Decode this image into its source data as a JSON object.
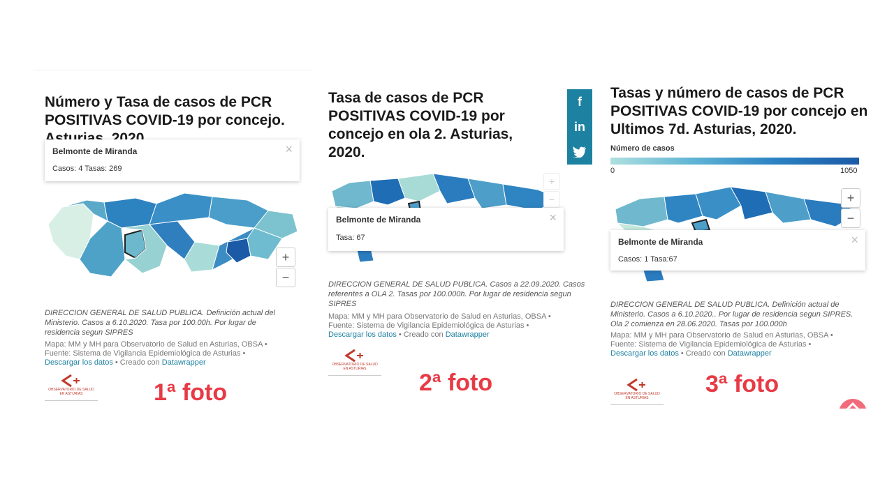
{
  "panels": [
    {
      "title_lines": [
        "Número y Tasa de casos de PCR",
        "POSITIVAS COVID-19 por concejo.",
        "Asturias, 2020"
      ],
      "tooltip": {
        "name": "Belmonte de Miranda",
        "values": "Casos: 4 Tasas: 269"
      },
      "zoom": {
        "plus": "+",
        "minus": "−"
      },
      "note": "DIRECCION GENERAL DE SALUD PUBLICA. Definición actual del Ministerio. Casos a 6.10.2020. Tasa por 100.00h. Por lugar de residencia segun SIPRES",
      "credits": {
        "map": "Mapa: MM y MH para Observatorio de Salud en Asturias, OBSA •",
        "source": "Fuente: Sistema de Vigilancia Epidemiológica de Asturias •",
        "download": "Descargar los datos",
        "created": " • Creado con ",
        "tool": "Datawrapper"
      },
      "logo_text": [
        "OBSERVATORIO DE SALUD",
        "EN ASTURIAS"
      ],
      "foto_label": "1ª foto"
    },
    {
      "title_lines": [
        "Tasa de casos de PCR",
        "POSITIVAS COVID-19 por",
        "concejo en ola 2.  Asturias,",
        "2020."
      ],
      "tooltip": {
        "name": "Belmonte de Miranda",
        "values": "Tasa: 67"
      },
      "zoom": {
        "plus": "+",
        "minus": "−"
      },
      "note": "DIRECCION GENERAL DE SALUD PUBLICA. Casos a 22.09.2020. Casos referentes a OLA 2. Tasas por 100.000h. Por lugar de residencia segun SIPRES",
      "credits": {
        "map": "Mapa: MM y MH para Observatorio de Salud en Asturias, OBSA •",
        "source": "Fuente: Sistema de Vigilancia Epidemiológica de Asturias •",
        "download": "Descargar los datos",
        "created": " • Creado con ",
        "tool": "Datawrapper"
      },
      "logo_text": [
        "OBSERVATORIO DE SALUD",
        "EN ASTURIAS"
      ],
      "foto_label": "2ª foto",
      "social": {
        "facebook": "f",
        "linkedin": "in",
        "twitter": "🐦"
      }
    },
    {
      "title_lines": [
        "Tasas y número de casos de PCR",
        "POSITIVAS COVID-19 por concejo en",
        "Ultimos 7d. Asturias, 2020."
      ],
      "legend": {
        "title": "Número de casos",
        "min": "0",
        "max": "1050"
      },
      "tooltip": {
        "name": "Belmonte de Miranda",
        "values": "Casos: 1 Tasa:67"
      },
      "zoom": {
        "plus": "+",
        "minus": "−"
      },
      "note": "DIRECCION GENERAL DE SALUD PUBLICA. Definición actual de Ministerio. Casos a 6.10.2020.. Por lugar de residencia segun SIPRES. Ola 2 comienza en 28.06.2020. Tasas por 100.000h",
      "credits": {
        "map": "Mapa: MM y MH para Observatorio de Salud en Asturias, OBSA •",
        "source": "Fuente: Sistema de Vigilancia Epidemiológica de Asturias •",
        "download": "Descargar los datos",
        "created": " • Creado con ",
        "tool": "Datawrapper"
      },
      "logo_text": [
        "OBSERVATORIO DE SALUD",
        "EN ASTURIAS"
      ],
      "foto_label": "3ª foto"
    }
  ],
  "colors": {
    "accent": "#e83a45",
    "link": "#1d81a2",
    "map_dark": "#1b5aa6",
    "map_light": "#aee0df"
  }
}
